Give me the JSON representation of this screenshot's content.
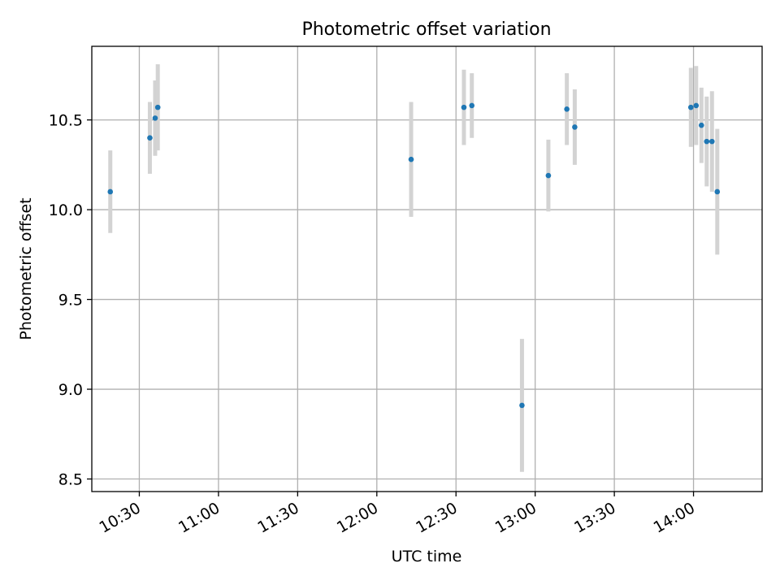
{
  "chart_data": {
    "type": "scatter",
    "title": "Photometric offset variation",
    "xlabel": "UTC time",
    "ylabel": "Photometric offset",
    "grid": true,
    "xlim": [
      "10:12",
      "14:26"
    ],
    "ylim": [
      8.43,
      10.91
    ],
    "xticks": [
      "10:30",
      "11:00",
      "11:30",
      "12:00",
      "12:30",
      "13:00",
      "13:30",
      "14:00"
    ],
    "yticks": [
      "8.5",
      "9.0",
      "9.5",
      "10.0",
      "10.5"
    ],
    "point_color": "#1f77b4",
    "errorbar_color": "#d3d3d3",
    "series": [
      {
        "points": [
          {
            "x": "10:19",
            "y": 10.1,
            "yerr": 0.23
          },
          {
            "x": "10:34",
            "y": 10.4,
            "yerr": 0.2
          },
          {
            "x": "10:36",
            "y": 10.51,
            "yerr": 0.21
          },
          {
            "x": "10:37",
            "y": 10.57,
            "yerr": 0.24
          },
          {
            "x": "12:13",
            "y": 10.28,
            "yerr": 0.32
          },
          {
            "x": "12:33",
            "y": 10.57,
            "yerr": 0.21
          },
          {
            "x": "12:36",
            "y": 10.58,
            "yerr": 0.18
          },
          {
            "x": "12:55",
            "y": 8.91,
            "yerr": 0.37
          },
          {
            "x": "13:05",
            "y": 10.19,
            "yerr": 0.2
          },
          {
            "x": "13:12",
            "y": 10.56,
            "yerr": 0.2
          },
          {
            "x": "13:15",
            "y": 10.46,
            "yerr": 0.21
          },
          {
            "x": "13:59",
            "y": 10.57,
            "yerr": 0.22
          },
          {
            "x": "14:01",
            "y": 10.58,
            "yerr": 0.22
          },
          {
            "x": "14:03",
            "y": 10.47,
            "yerr": 0.21
          },
          {
            "x": "14:05",
            "y": 10.38,
            "yerr": 0.25
          },
          {
            "x": "14:07",
            "y": 10.38,
            "yerr": 0.28
          },
          {
            "x": "14:09",
            "y": 10.1,
            "yerr": 0.35
          }
        ]
      }
    ]
  }
}
